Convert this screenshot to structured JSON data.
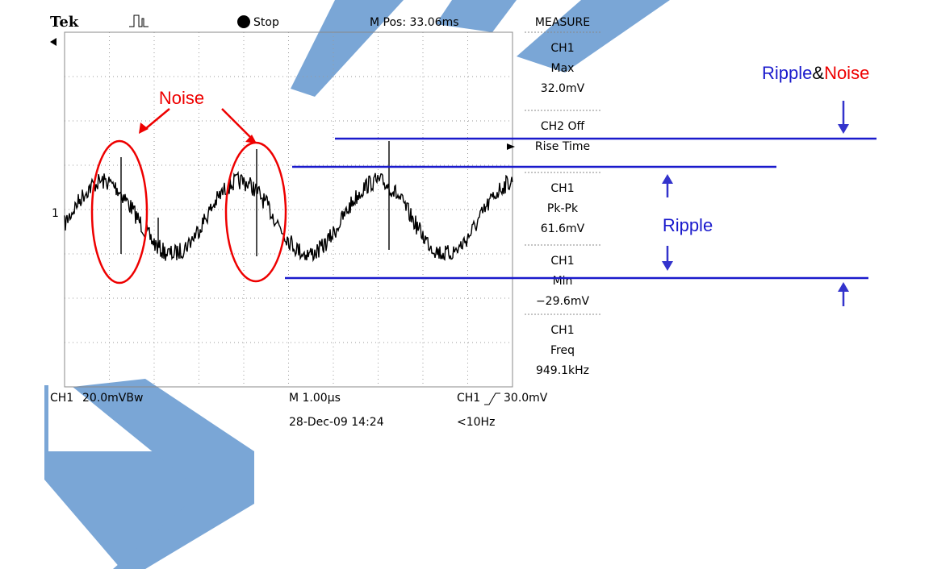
{
  "header": {
    "brand": "Tek",
    "state": "Stop",
    "position": "M Pos: 33.06ms"
  },
  "marker": "1",
  "measure": {
    "title": "MEASURE",
    "items": [
      {
        "channel": "CH1",
        "label": "Max",
        "value": "32.0mV"
      },
      {
        "channel": "CH2 Off",
        "label": "Rise Time"
      },
      {
        "channel": "CH1",
        "label": "Pk-Pk",
        "value": "61.6mV"
      },
      {
        "channel": "CH1",
        "label": "Min",
        "value": "−29.6mV"
      },
      {
        "channel": "CH1",
        "label": "Freq",
        "value": "949.1kHz"
      }
    ]
  },
  "footer": {
    "channel": "CH1",
    "scale": "20.0mVBw",
    "timebase": "M 1.00µs",
    "trigger_channel": "CH1",
    "trigger_level": "30.0mV",
    "timestamp": "28-Dec-09 14:24",
    "frequency": "<10Hz"
  },
  "annotations": {
    "noise": "Noise",
    "ripple": "Ripple",
    "ripple_noise": [
      "Ripple",
      "&",
      "Noise"
    ]
  }
}
